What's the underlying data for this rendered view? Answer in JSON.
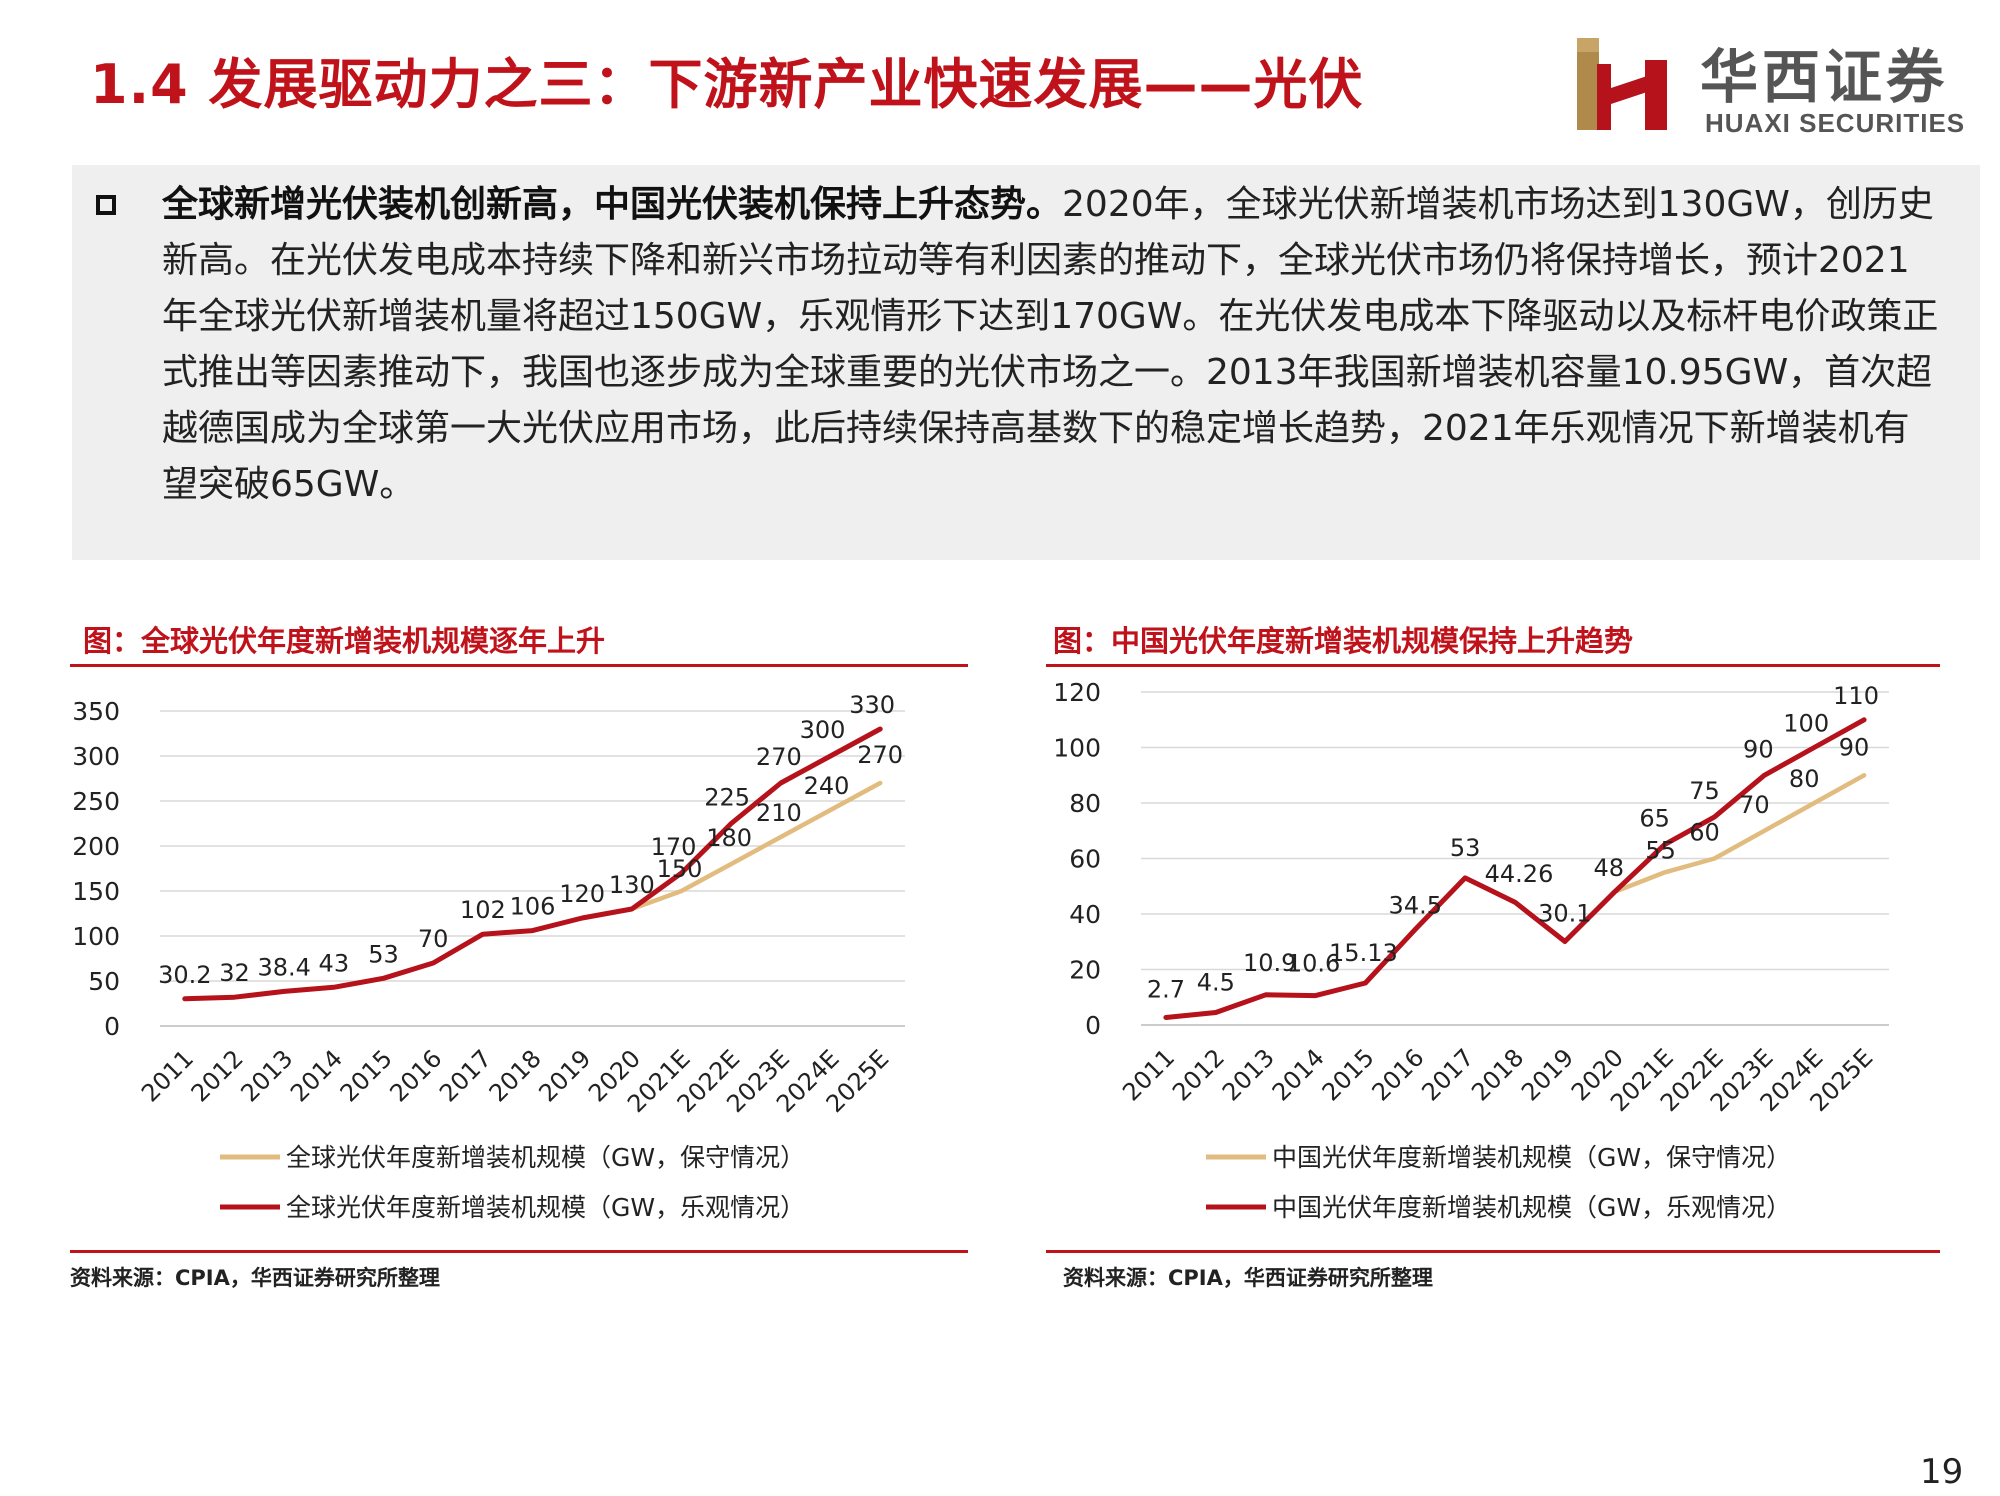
{
  "header": {
    "title": "1.4 发展驱动力之三：下游新产业快速发展——光伏",
    "logo_cn": "华西证券",
    "logo_en": "HUAXI SECURITIES"
  },
  "intro": {
    "bold": "全球新增光伏装机创新高，中国光伏装机保持上升态势。",
    "text": "2020年，全球光伏新增装机市场达到130GW，创历史新高。在光伏发电成本持续下降和新兴市场拉动等有利因素的推动下，全球光伏市场仍将保持增长，预计2021年全球光伏新增装机量将超过150GW，乐观情形下达到170GW。在光伏发电成本下降驱动以及标杆电价政策正式推出等因素推动下，我国也逐步成为全球重要的光伏市场之一。2013年我国新增装机容量10.95GW，首次超越德国成为全球第一大光伏应用市场，此后持续保持高基数下的稳定增长趋势，2021年乐观情况下新增装机有望突破65GW。"
  },
  "chart_data": [
    {
      "type": "line",
      "title": "图：全球光伏年度新增装机规模逐年上升",
      "source": "资料来源：CPIA，华西证券研究所整理",
      "categories": [
        "2011",
        "2012",
        "2013",
        "2014",
        "2015",
        "2016",
        "2017",
        "2018",
        "2019",
        "2020",
        "2021E",
        "2022E",
        "2023E",
        "2024E",
        "2025E"
      ],
      "ylim": [
        0,
        350
      ],
      "yticks": [
        "0",
        "50",
        "100",
        "150",
        "200",
        "250",
        "300",
        "350"
      ],
      "grid": true,
      "legend": "bottom",
      "series": [
        {
          "name": "全球光伏年度新增装机规模（GW，保守情况）",
          "color": "#e2bb7f",
          "values": [
            30.2,
            32,
            38.4,
            43,
            53,
            70,
            102,
            106,
            120,
            130,
            150,
            180,
            210,
            240,
            270
          ],
          "labels": [
            "",
            "",
            "",
            "",
            "",
            "",
            "",
            "",
            "",
            "",
            "150",
            "180",
            "210",
            "240",
            "270"
          ]
        },
        {
          "name": "全球光伏年度新增装机规模（GW，乐观情况）",
          "color": "#b5121b",
          "values": [
            30.2,
            32,
            38.4,
            43,
            53,
            70,
            102,
            106,
            120,
            130,
            170,
            225,
            270,
            300,
            330
          ],
          "labels": [
            "30.2",
            "32",
            "38.4",
            "43",
            "53",
            "70",
            "102",
            "106",
            "120",
            "130",
            "170",
            "225",
            "270",
            "300",
            "330"
          ]
        }
      ]
    },
    {
      "type": "line",
      "title": "图：中国光伏年度新增装机规模保持上升趋势",
      "source": "资料来源：CPIA，华西证券研究所整理",
      "categories": [
        "2011",
        "2012",
        "2013",
        "2014",
        "2015",
        "2016",
        "2017",
        "2018",
        "2019",
        "2020",
        "2021E",
        "2022E",
        "2023E",
        "2024E",
        "2025E"
      ],
      "ylim": [
        0,
        120
      ],
      "yticks": [
        "0",
        "20",
        "40",
        "60",
        "80",
        "100",
        "120"
      ],
      "grid": true,
      "legend": "bottom",
      "series": [
        {
          "name": "中国光伏年度新增装机规模（GW，保守情况）",
          "color": "#e2bb7f",
          "values": [
            2.7,
            4.5,
            10.9,
            10.6,
            15.13,
            34.5,
            53,
            44.26,
            30.1,
            48,
            55,
            60,
            70,
            80,
            90
          ],
          "labels": [
            "",
            "",
            "",
            "",
            "",
            "",
            "",
            "",
            "",
            "",
            "55",
            "60",
            "70",
            "80",
            "90"
          ]
        },
        {
          "name": "中国光伏年度新增装机规模（GW，乐观情况）",
          "color": "#b5121b",
          "values": [
            2.7,
            4.5,
            10.9,
            10.6,
            15.13,
            34.5,
            53,
            44.26,
            30.1,
            48,
            65,
            75,
            90,
            100,
            110
          ],
          "labels": [
            "2.7",
            "4.5",
            "10.9",
            "10.6",
            "15.13",
            "34.5",
            "53",
            "44.26",
            "30.1",
            "48",
            "65",
            "75",
            "90",
            "100",
            "110"
          ]
        }
      ]
    }
  ],
  "page": {
    "number": "19"
  }
}
